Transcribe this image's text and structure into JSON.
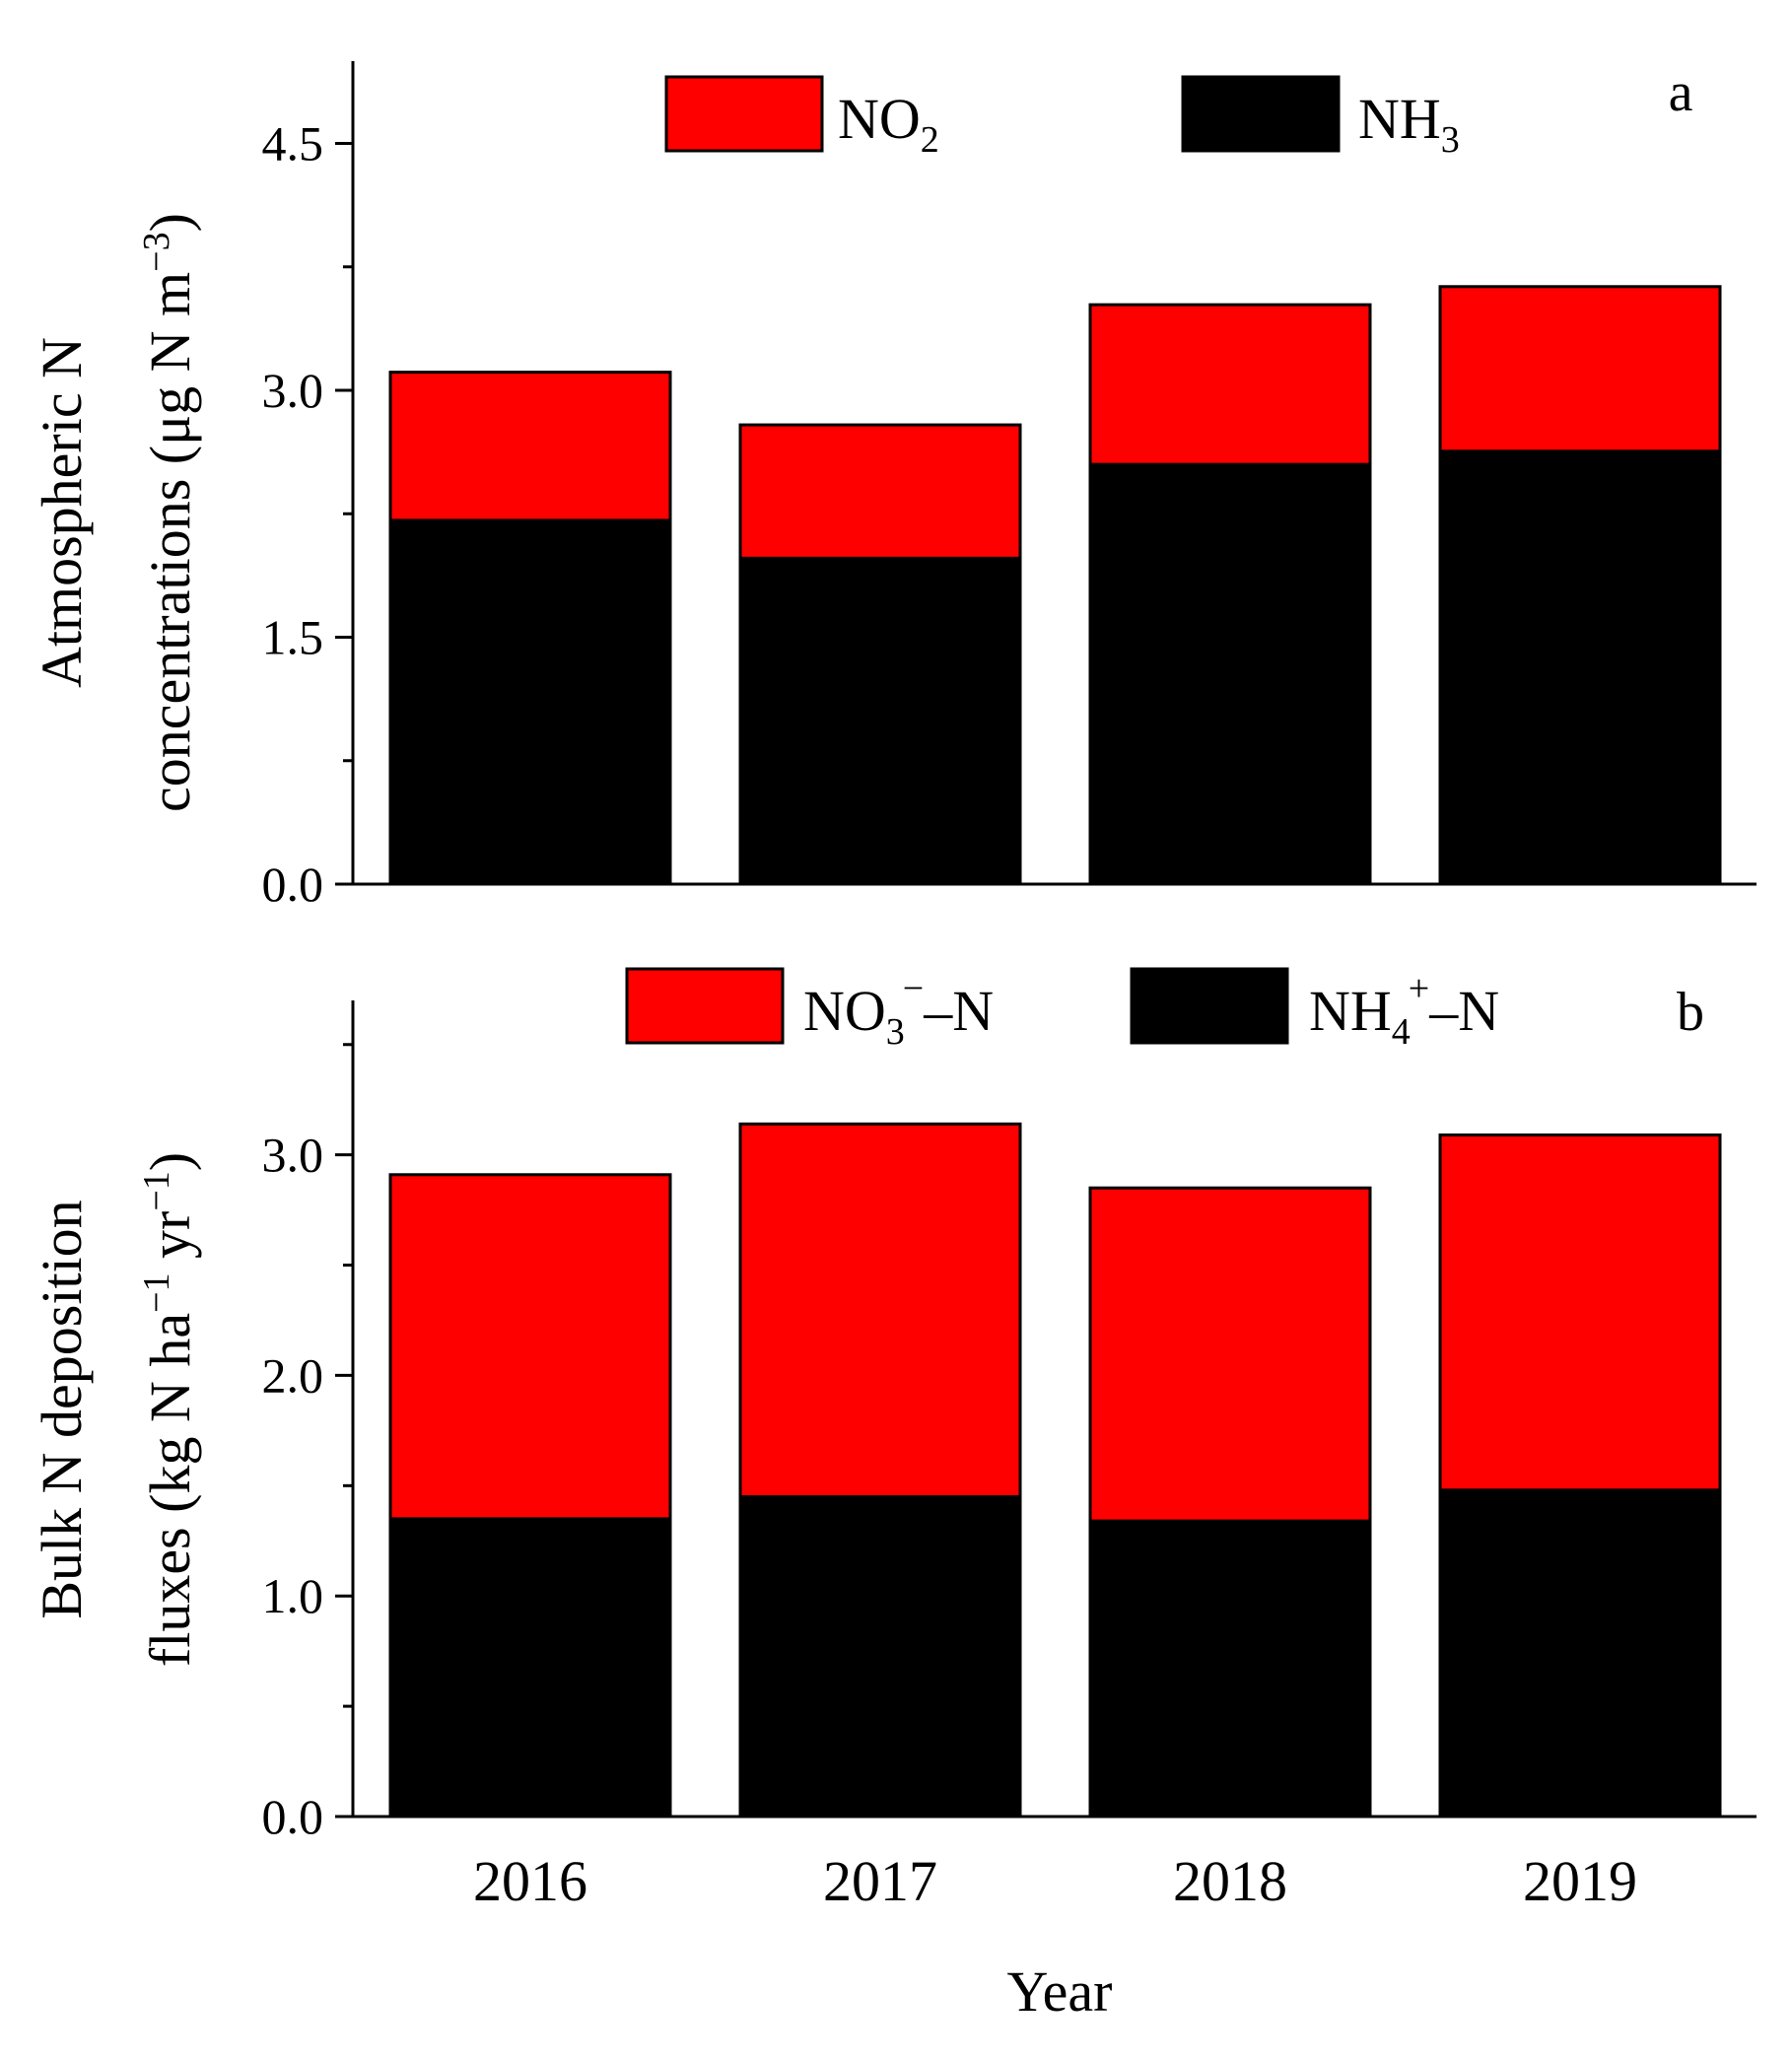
{
  "figure": {
    "xlabel": "Year",
    "colors": {
      "red": "#ff0000",
      "black": "#000000"
    }
  },
  "chart_data": [
    {
      "panel": "a",
      "type": "bar",
      "stacked": true,
      "categories": [
        "2016",
        "2017",
        "2018",
        "2019"
      ],
      "series": [
        {
          "key": "nh3",
          "name": "NH3",
          "color": "#000000",
          "values": [
            2.21,
            1.98,
            2.55,
            2.63
          ]
        },
        {
          "key": "no2",
          "name": "NO2",
          "color": "#ff0000",
          "values": [
            0.9,
            0.81,
            0.97,
            1.0
          ]
        }
      ],
      "ylabel_lines": [
        "Atmospheric N",
        "concentrations (μg N m−3)"
      ],
      "ylim": [
        0,
        5.0
      ],
      "yticks": [
        0.0,
        1.5,
        3.0,
        4.5
      ],
      "yticks_labels": [
        "0.0",
        "1.5",
        "3.0",
        "4.5"
      ],
      "yminor": [
        0.75,
        2.25,
        3.75
      ],
      "legend_placement": "top",
      "legend": [
        {
          "base": "NO",
          "sub": "2",
          "sup": "",
          "suffix": "",
          "color": "#ff0000"
        },
        {
          "base": "NH",
          "sub": "3",
          "sup": "",
          "suffix": "",
          "color": "#000000"
        }
      ]
    },
    {
      "panel": "b",
      "type": "bar",
      "stacked": true,
      "categories": [
        "2016",
        "2017",
        "2018",
        "2019"
      ],
      "series": [
        {
          "key": "nh4",
          "name": "NH4+–N",
          "color": "#000000",
          "values": [
            1.35,
            1.45,
            1.34,
            1.48
          ]
        },
        {
          "key": "no3",
          "name": "NO3−–N",
          "color": "#ff0000",
          "values": [
            1.56,
            1.69,
            1.51,
            1.61
          ]
        }
      ],
      "ylabel_lines": [
        "Bulk N deposition",
        "fluxes (kg N ha−1 yr−1)"
      ],
      "ylim": [
        0,
        3.7
      ],
      "yticks": [
        0.0,
        1.0,
        2.0,
        3.0
      ],
      "yticks_labels": [
        "0.0",
        "1.0",
        "2.0",
        "3.0"
      ],
      "yminor": [
        0.5,
        1.5,
        2.5,
        3.5
      ],
      "legend_placement": "top",
      "legend": [
        {
          "base": "NO",
          "sub": "3",
          "sup": "−",
          "suffix": "–N",
          "color": "#ff0000"
        },
        {
          "base": "NH",
          "sub": "4",
          "sup": "+",
          "suffix": "–N",
          "color": "#000000"
        }
      ]
    }
  ]
}
